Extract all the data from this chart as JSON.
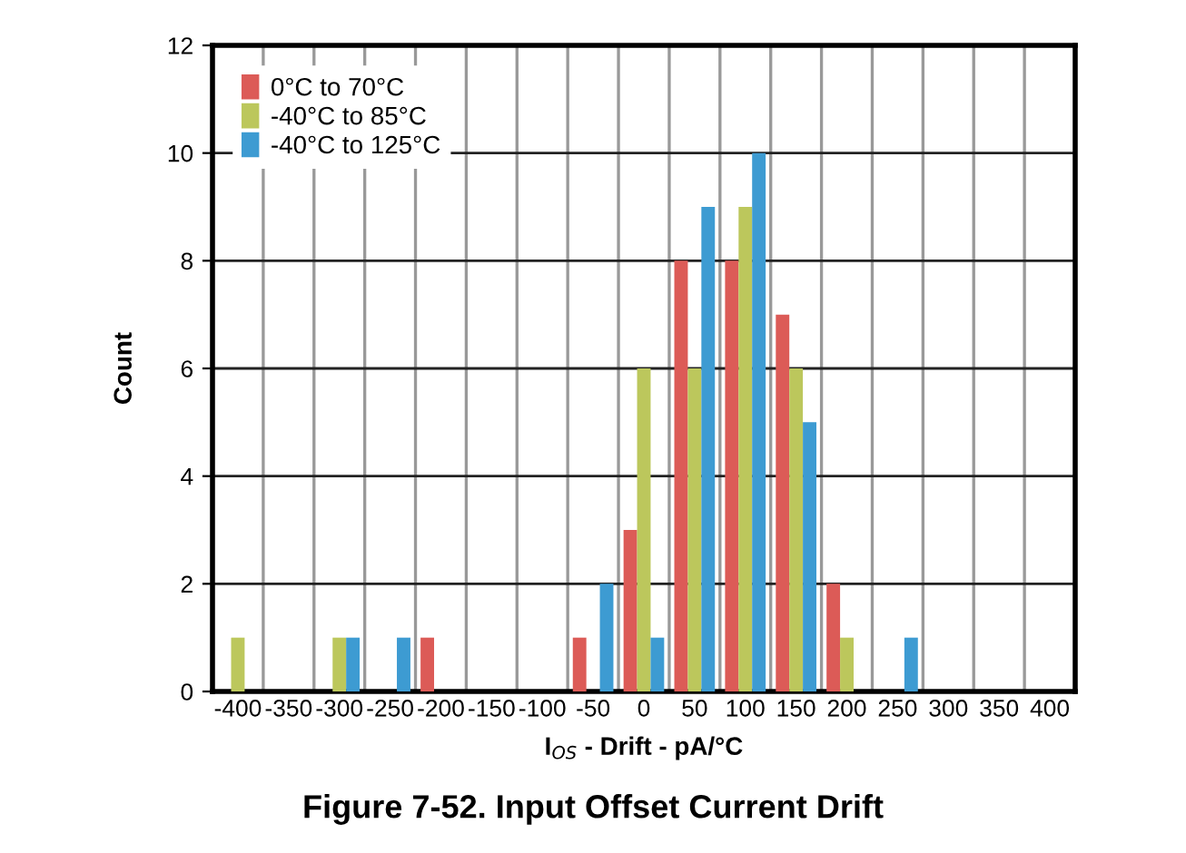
{
  "chart_data": {
    "type": "bar",
    "title": "Figure 7-52. Input Offset Current Drift",
    "xlabel": "I$_{OS}$ - Drift - pA/°C",
    "ylabel": "Count",
    "categories": [
      "-400",
      "-350",
      "-300",
      "-250",
      "-200",
      "-150",
      "-100",
      "-50",
      "0",
      "50",
      "100",
      "150",
      "200",
      "250",
      "300",
      "350",
      "400"
    ],
    "series": [
      {
        "name": "0°C to 70°C",
        "color": "#dc5b57",
        "values": [
          0,
          0,
          0,
          0,
          1,
          0,
          0,
          1,
          3,
          8,
          8,
          7,
          2,
          0,
          0,
          0,
          0
        ]
      },
      {
        "name": "-40°C to 85°C",
        "color": "#bcc75c",
        "values": [
          1,
          0,
          1,
          0,
          0,
          0,
          0,
          0,
          6,
          6,
          9,
          6,
          1,
          0,
          0,
          0,
          0
        ]
      },
      {
        "name": "-40°C to 125°C",
        "color": "#3d9bd2",
        "values": [
          0,
          0,
          1,
          1,
          0,
          0,
          0,
          2,
          1,
          9,
          10,
          5,
          0,
          1,
          0,
          0,
          0
        ]
      }
    ],
    "ylim": [
      0,
      12
    ],
    "yticks": [
      0,
      2,
      4,
      6,
      8,
      10,
      12
    ],
    "grid": true,
    "legend": "top left"
  }
}
